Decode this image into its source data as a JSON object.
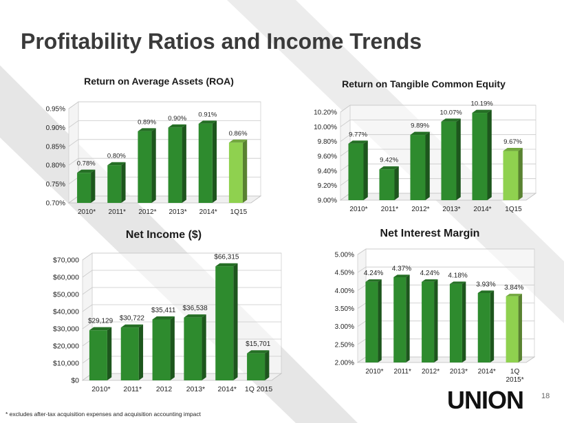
{
  "slide": {
    "title": "Profitability Ratios and Income Trends",
    "footnote": "* excludes after-tax acquisition expenses and acquisition accounting impact",
    "page_number": "18",
    "logo_text": "UNION"
  },
  "colors": {
    "bar_dark": "#2e8b2e",
    "bar_light": "#8fd14f",
    "title_text": "#3a3a3a",
    "logo_green": "#2f9a3a"
  },
  "chart_data": [
    {
      "type": "bar",
      "title": "Return on Average Assets (ROA)",
      "categories": [
        "2010*",
        "2011*",
        "2012*",
        "2013*",
        "2014*",
        "1Q15"
      ],
      "values": [
        0.78,
        0.8,
        0.89,
        0.9,
        0.91,
        0.86
      ],
      "data_labels": [
        "0.78%",
        "0.80%",
        "0.89%",
        "0.90%",
        "0.91%",
        "0.86%"
      ],
      "yticks": [
        "0.70%",
        "0.75%",
        "0.80%",
        "0.85%",
        "0.90%",
        "0.95%"
      ],
      "ylim": [
        0.7,
        0.95
      ],
      "highlight_last": true
    },
    {
      "type": "bar",
      "title": "Return on Tangible Common Equity",
      "categories": [
        "2010*",
        "2011*",
        "2012*",
        "2013*",
        "2014*",
        "1Q15"
      ],
      "values": [
        9.77,
        9.42,
        9.89,
        10.07,
        10.19,
        9.67
      ],
      "data_labels": [
        "9.77%",
        "9.42%",
        "9.89%",
        "10.07%",
        "10.19%",
        "9.67%"
      ],
      "yticks": [
        "9.00%",
        "9.20%",
        "9.40%",
        "9.60%",
        "9.80%",
        "10.00%",
        "10.20%"
      ],
      "ylim": [
        9.0,
        10.2
      ],
      "highlight_last": true
    },
    {
      "type": "bar",
      "title": "Net Income ($)",
      "categories": [
        "2010*",
        "2011*",
        "2012",
        "2013*",
        "2014*",
        "1Q 2015"
      ],
      "values": [
        29129,
        30722,
        35411,
        36538,
        66315,
        15701
      ],
      "data_labels": [
        "$29,129",
        "$30,722",
        "$35,411",
        "$36,538",
        "$66,315",
        "$15,701"
      ],
      "yticks": [
        "$0",
        "$10,000",
        "$20,000",
        "$30,000",
        "$40,000",
        "$50,000",
        "$60,000",
        "$70,000"
      ],
      "ylim": [
        0,
        70000
      ],
      "highlight_last": false
    },
    {
      "type": "bar",
      "title": "Net Interest Margin",
      "categories": [
        "2010*",
        "2011*",
        "2012*",
        "2013*",
        "2014*",
        "1Q 2015*"
      ],
      "values": [
        4.24,
        4.37,
        4.24,
        4.18,
        3.93,
        3.84
      ],
      "data_labels": [
        "4.24%",
        "4.37%",
        "4.24%",
        "4.18%",
        "3.93%",
        "3.84%"
      ],
      "yticks": [
        "2.00%",
        "2.50%",
        "3.00%",
        "3.50%",
        "4.00%",
        "4.50%",
        "5.00%"
      ],
      "ylim": [
        2.0,
        5.0
      ],
      "highlight_last": true
    }
  ]
}
